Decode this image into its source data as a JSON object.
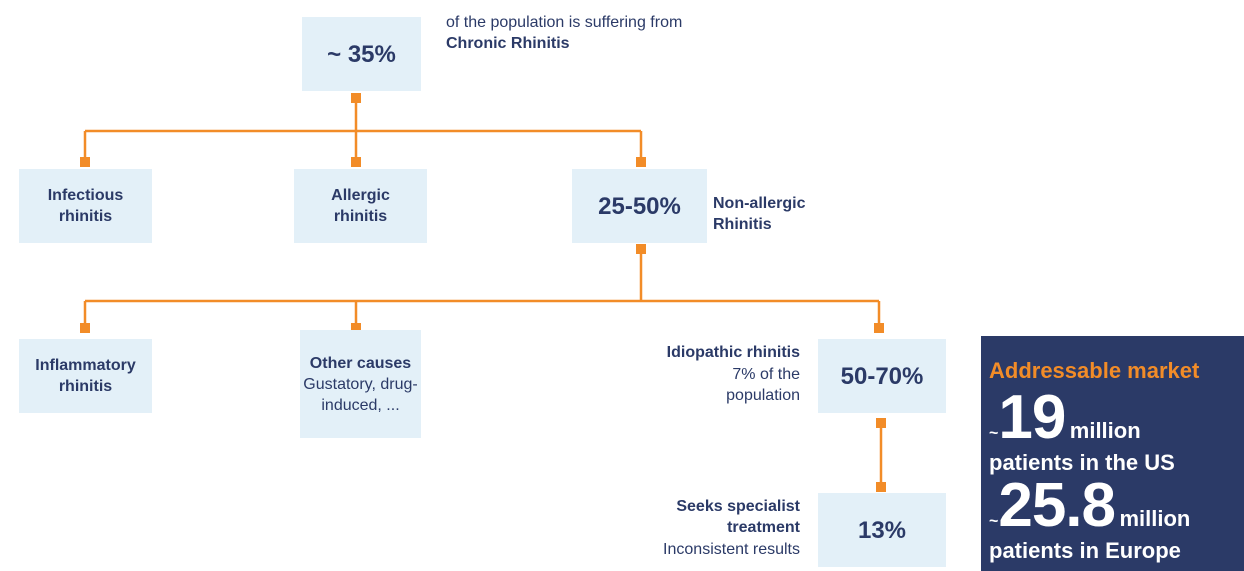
{
  "root": {
    "value": "~ 35%",
    "note": "of the population is suffering from",
    "note_bold": "Chronic Rhinitis"
  },
  "level1": [
    {
      "label": "Infectious rhinitis"
    },
    {
      "label": "Allergic rhinitis"
    },
    {
      "value": "25-50%",
      "note": "Non-allergic Rhinitis"
    }
  ],
  "level2": [
    {
      "label": "Inflammatory rhinitis"
    },
    {
      "title": "Other causes",
      "detail": "Gustatory, drug-induced, ..."
    },
    {
      "value": "50-70%",
      "note_bold": "Idiopathic rhinitis",
      "note": "7% of the population"
    }
  ],
  "level3": {
    "value": "13%",
    "note_bold": "Seeks specialist treatment",
    "note": "Inconsistent results"
  },
  "market": {
    "title": "Addressable market",
    "items": [
      {
        "prefix": "~",
        "number": "19",
        "unit": "million",
        "label": "patients in the US"
      },
      {
        "prefix": "~",
        "number": "25.8",
        "unit": "million",
        "label": "patients in Europe"
      }
    ]
  }
}
